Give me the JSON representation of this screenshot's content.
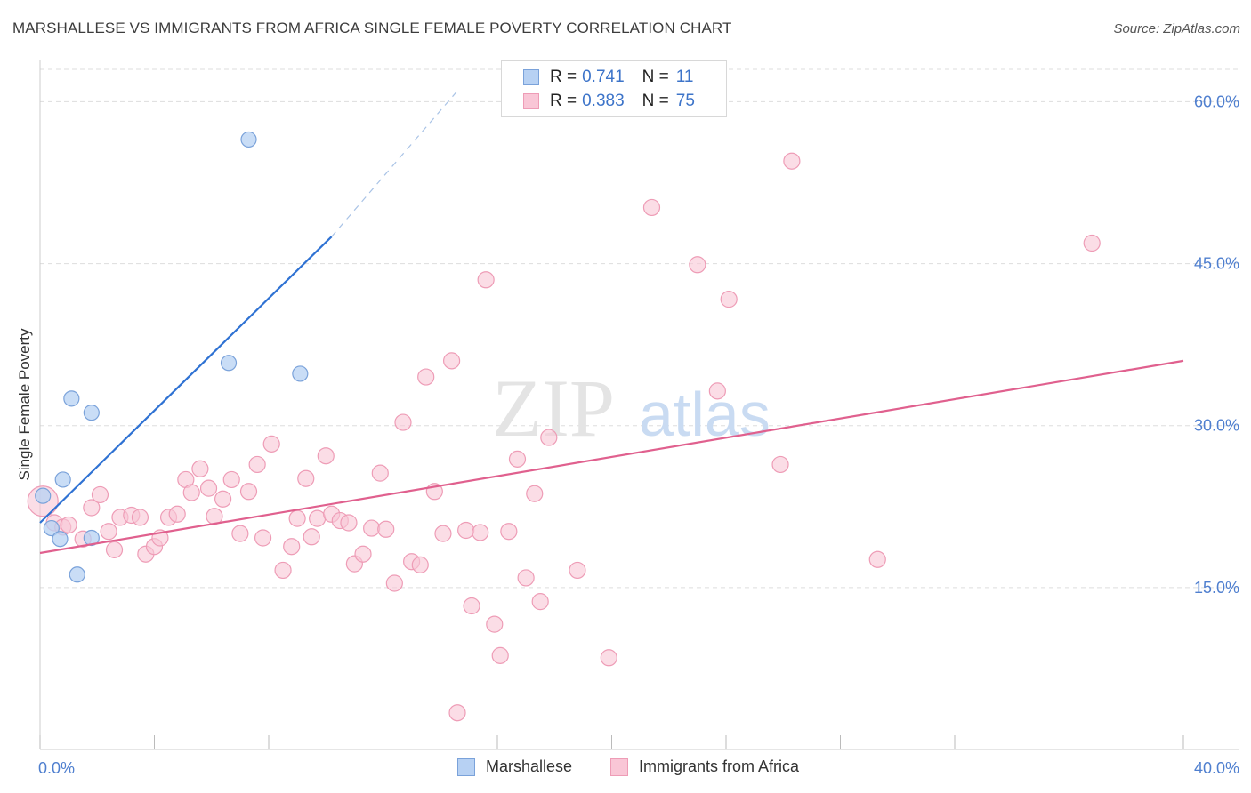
{
  "title": "MARSHALLESE VS IMMIGRANTS FROM AFRICA SINGLE FEMALE POVERTY CORRELATION CHART",
  "source": "Source: ZipAtlas.com",
  "watermark": {
    "zip": "ZIP",
    "atlas": "atlas"
  },
  "legend": {
    "rows": [
      {
        "r_label": "R =",
        "r_value": "0.741",
        "n_label": "N =",
        "n_value": "11"
      },
      {
        "r_label": "R =",
        "r_value": "0.383",
        "n_label": "N =",
        "n_value": "75"
      }
    ]
  },
  "bottom_legend": [
    "Marshallese",
    "Immigrants from Africa"
  ],
  "colors": {
    "blue_fill": "#b7d1f3",
    "blue_stroke": "#7aa2da",
    "blue_line": "#2f72d3",
    "pink_fill": "#f9c6d6",
    "pink_stroke": "#ee9cb6",
    "pink_line": "#e0608e",
    "tick_label": "#4f7fcf",
    "grid": "#dddddd"
  },
  "chart_data": {
    "type": "scatter",
    "title": "MARSHALLESE VS IMMIGRANTS FROM AFRICA SINGLE FEMALE POVERTY CORRELATION CHART",
    "xlabel": "",
    "ylabel": "Single Female Poverty",
    "xlim": [
      0,
      40
    ],
    "ylim": [
      0,
      63
    ],
    "x_tick_labels": [
      {
        "value": 0,
        "label": "0.0%"
      },
      {
        "value": 40,
        "label": "40.0%"
      }
    ],
    "x_minor_ticks": [
      0,
      4,
      8,
      12,
      16,
      20,
      24,
      28,
      32,
      36,
      40
    ],
    "y_ticks": [
      {
        "value": 15,
        "label": "15.0%"
      },
      {
        "value": 30,
        "label": "30.0%"
      },
      {
        "value": 45,
        "label": "45.0%"
      },
      {
        "value": 60,
        "label": "60.0%"
      }
    ],
    "series": [
      {
        "name": "Marshallese",
        "r": 0.741,
        "n": 11,
        "points": [
          [
            0.1,
            23.5
          ],
          [
            0.4,
            20.5
          ],
          [
            0.7,
            19.5
          ],
          [
            0.8,
            25.0
          ],
          [
            1.1,
            32.5
          ],
          [
            1.3,
            16.2
          ],
          [
            1.8,
            31.2
          ],
          [
            1.8,
            19.6
          ],
          [
            6.6,
            35.8
          ],
          [
            7.3,
            56.5
          ],
          [
            9.1,
            34.8
          ]
        ],
        "trend": {
          "x0": 0.0,
          "y0": 21.0,
          "x1": 10.2,
          "y1": 47.5,
          "dash_x1": 14.6,
          "dash_y1": 61.0
        }
      },
      {
        "name": "Immigrants from Africa",
        "r": 0.383,
        "n": 75,
        "points": [
          [
            0.1,
            23.0
          ],
          [
            0.5,
            21.0
          ],
          [
            0.8,
            20.6
          ],
          [
            1.0,
            20.8
          ],
          [
            1.5,
            19.5
          ],
          [
            1.8,
            22.4
          ],
          [
            2.1,
            23.6
          ],
          [
            2.4,
            20.2
          ],
          [
            2.6,
            18.5
          ],
          [
            2.8,
            21.5
          ],
          [
            3.2,
            21.7
          ],
          [
            3.5,
            21.5
          ],
          [
            3.7,
            18.1
          ],
          [
            4.0,
            18.8
          ],
          [
            4.2,
            19.6
          ],
          [
            4.5,
            21.5
          ],
          [
            4.8,
            21.8
          ],
          [
            5.1,
            25.0
          ],
          [
            5.3,
            23.8
          ],
          [
            5.6,
            26.0
          ],
          [
            5.9,
            24.2
          ],
          [
            6.1,
            21.6
          ],
          [
            6.4,
            23.2
          ],
          [
            6.7,
            25.0
          ],
          [
            7.0,
            20.0
          ],
          [
            7.3,
            23.9
          ],
          [
            7.6,
            26.4
          ],
          [
            7.8,
            19.6
          ],
          [
            8.1,
            28.3
          ],
          [
            8.5,
            16.6
          ],
          [
            8.8,
            18.8
          ],
          [
            9.0,
            21.4
          ],
          [
            9.3,
            25.1
          ],
          [
            9.5,
            19.7
          ],
          [
            9.7,
            21.4
          ],
          [
            10.0,
            27.2
          ],
          [
            10.2,
            21.8
          ],
          [
            10.5,
            21.2
          ],
          [
            10.8,
            21.0
          ],
          [
            11.0,
            17.2
          ],
          [
            11.3,
            18.1
          ],
          [
            11.6,
            20.5
          ],
          [
            11.9,
            25.6
          ],
          [
            12.1,
            20.4
          ],
          [
            12.4,
            15.4
          ],
          [
            12.7,
            30.3
          ],
          [
            13.0,
            17.4
          ],
          [
            13.3,
            17.1
          ],
          [
            13.5,
            34.5
          ],
          [
            13.8,
            23.9
          ],
          [
            14.1,
            20.0
          ],
          [
            14.4,
            36.0
          ],
          [
            14.6,
            3.4
          ],
          [
            14.9,
            20.3
          ],
          [
            15.1,
            13.3
          ],
          [
            15.4,
            20.1
          ],
          [
            15.6,
            43.5
          ],
          [
            15.9,
            11.6
          ],
          [
            16.1,
            8.7
          ],
          [
            16.4,
            20.2
          ],
          [
            16.7,
            26.9
          ],
          [
            17.0,
            15.9
          ],
          [
            17.3,
            23.7
          ],
          [
            17.5,
            13.7
          ],
          [
            17.8,
            28.9
          ],
          [
            18.8,
            16.6
          ],
          [
            19.9,
            8.5
          ],
          [
            21.4,
            50.2
          ],
          [
            23.0,
            44.9
          ],
          [
            23.7,
            33.2
          ],
          [
            24.1,
            41.7
          ],
          [
            25.9,
            26.4
          ],
          [
            26.3,
            54.5
          ],
          [
            29.3,
            17.6
          ],
          [
            36.8,
            46.9
          ]
        ],
        "trend": {
          "x0": 0.0,
          "y0": 18.2,
          "x1": 40.0,
          "y1": 36.0
        }
      }
    ]
  }
}
